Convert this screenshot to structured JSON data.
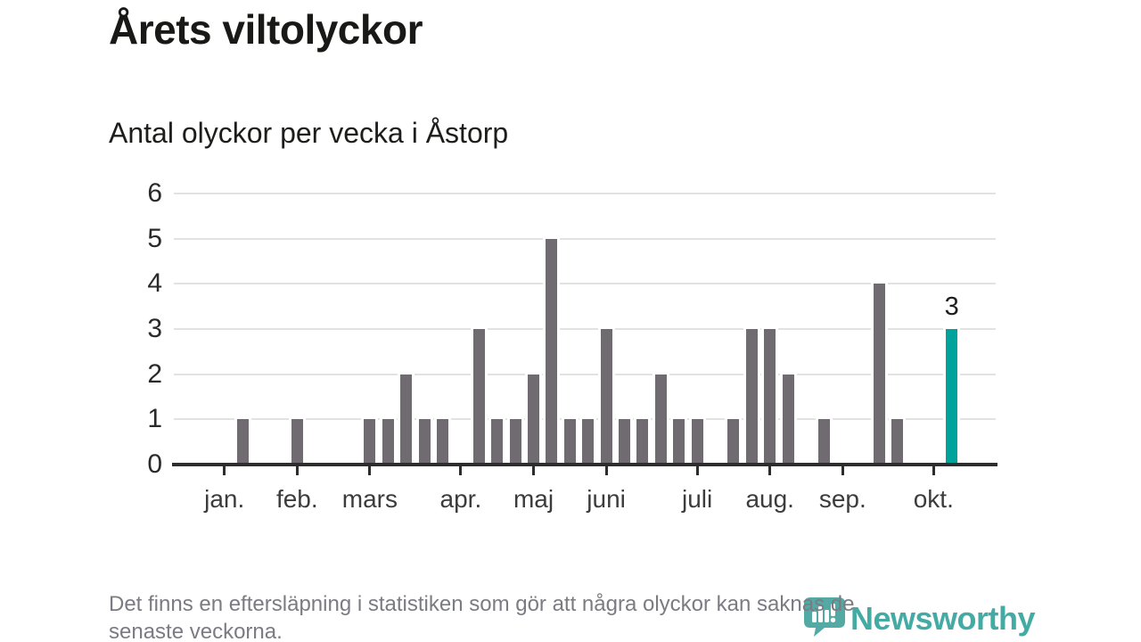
{
  "header": {
    "title": "Årets viltolyckor",
    "subtitle": "Antal olyckor per vecka i Åstorp"
  },
  "footnote": {
    "lines": [
      "Det finns en eftersläpning i statistiken som gör att några olyckor kan saknas de",
      "senaste veckorna."
    ]
  },
  "brand": {
    "name": "Newsworthy",
    "color": "#3aa7a0"
  },
  "chart_data": {
    "type": "bar",
    "title": "Antal olyckor per vecka i Åstorp",
    "xlabel": "",
    "ylabel": "",
    "x_unit": "vecka",
    "weeks_start": 1,
    "y_axis": {
      "min": 0,
      "max": 6,
      "ticks": [
        0,
        1,
        2,
        3,
        4,
        5,
        6
      ],
      "grid": true
    },
    "x_axis": {
      "ticks": [
        {
          "label": "jan.",
          "week": 1
        },
        {
          "label": "feb.",
          "week": 5
        },
        {
          "label": "mars",
          "week": 9
        },
        {
          "label": "apr.",
          "week": 14
        },
        {
          "label": "maj",
          "week": 18
        },
        {
          "label": "juni",
          "week": 22
        },
        {
          "label": "juli",
          "week": 27
        },
        {
          "label": "aug.",
          "week": 31
        },
        {
          "label": "sep.",
          "week": 35
        },
        {
          "label": "okt.",
          "week": 40
        }
      ]
    },
    "series": [
      {
        "name": "Antal olyckor",
        "values": [
          0,
          1,
          0,
          0,
          1,
          0,
          0,
          0,
          1,
          1,
          2,
          1,
          1,
          0,
          3,
          1,
          1,
          2,
          5,
          1,
          1,
          3,
          1,
          1,
          2,
          1,
          1,
          0,
          1,
          3,
          3,
          2,
          0,
          1,
          0,
          0,
          4,
          1,
          0,
          0,
          3
        ]
      }
    ],
    "highlight": {
      "week": 41,
      "value": 3,
      "label": "3"
    },
    "colors": {
      "bar": "#6f6b71",
      "highlight": "#00a39c",
      "grid": "#e2e2e3",
      "axis": "#2d2d2d"
    }
  }
}
